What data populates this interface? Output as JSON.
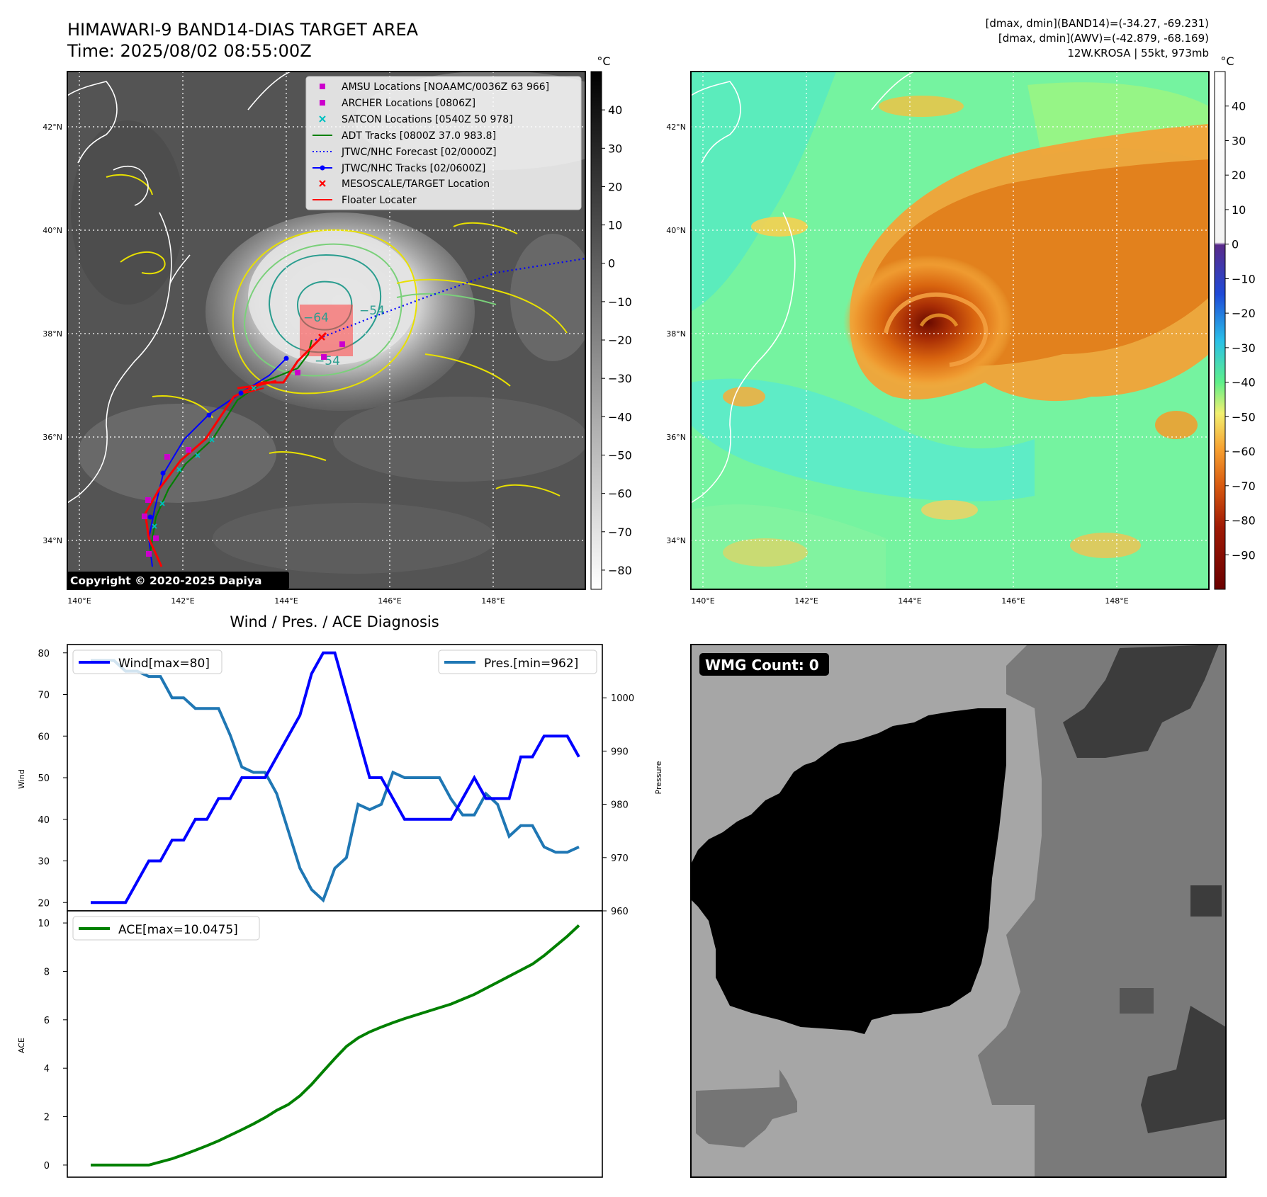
{
  "header": {
    "title_line1": "HIMAWARI-9 BAND14-DIAS TARGET AREA",
    "title_line2": "Time: 2025/08/02 08:55:00Z",
    "info_line1": "[dmax, dmin](BAND14)=(-34.27, -69.231)",
    "info_line2": "[dmax, dmin](AWV)=(-42.879, -68.169)",
    "info_line3": "12W.KROSA | 55kt, 973mb"
  },
  "map_panel_left": {
    "lon_ticks": [
      "140°E",
      "142°E",
      "144°E",
      "146°E",
      "148°E"
    ],
    "lat_ticks": [
      "42°N",
      "40°N",
      "38°N",
      "36°N",
      "34°N"
    ],
    "copyright": "Copyright © 2020-2025 Dapiya",
    "contour_labels": [
      "−64",
      "−54",
      "−54"
    ],
    "legend": [
      {
        "label": "AMSU Locations [NOAAMC/0036Z 63 966]",
        "color": "#cc00cc",
        "marker": "square"
      },
      {
        "label": "ARCHER Locations [0806Z]",
        "color": "#cc00cc",
        "marker": "square"
      },
      {
        "label": "SATCON Locations [0540Z 50 978]",
        "color": "#00c0c0",
        "marker": "x"
      },
      {
        "label": "ADT Tracks [0800Z 37.0 983.8]",
        "color": "#008000",
        "marker": "line"
      },
      {
        "label": "JTWC/NHC Forecast [02/0000Z]",
        "color": "#0000ff",
        "marker": "dotted"
      },
      {
        "label": "JTWC/NHC Tracks [02/0600Z]",
        "color": "#0000ff",
        "marker": "line-dot"
      },
      {
        "label": "MESOSCALE/TARGET Location",
        "color": "#ff0000",
        "marker": "x"
      },
      {
        "label": "Floater Locater",
        "color": "#ff0000",
        "marker": "line"
      }
    ],
    "colorbar": {
      "unit": "°C",
      "ticks": [
        "40",
        "30",
        "20",
        "10",
        "0",
        "−10",
        "−20",
        "−30",
        "−40",
        "−50",
        "−60",
        "−70",
        "−80"
      ],
      "range": [
        -85,
        50
      ]
    }
  },
  "map_panel_right": {
    "lon_ticks": [
      "140°E",
      "142°E",
      "144°E",
      "146°E",
      "148°E"
    ],
    "lat_ticks": [
      "42°N",
      "40°N",
      "38°N",
      "36°N",
      "34°N"
    ],
    "colorbar": {
      "unit": "°C",
      "ticks": [
        "40",
        "30",
        "20",
        "10",
        "0",
        "−10",
        "−20",
        "−30",
        "−40",
        "−50",
        "−60",
        "−70",
        "−80",
        "−90"
      ],
      "range": [
        -100,
        50
      ]
    }
  },
  "wmg_panel": {
    "label": "WMG Count: 0"
  },
  "chart_data": [
    {
      "type": "line",
      "title": "Wind / Pres. / ACE Diagnosis",
      "ylabel": "Wind",
      "y2label": "Pressure",
      "ylim": [
        18,
        82
      ],
      "y2lim": [
        960,
        1010
      ],
      "yticks": [
        20,
        30,
        40,
        50,
        60,
        70,
        80
      ],
      "y2ticks": [
        960,
        970,
        980,
        990,
        1000
      ],
      "series": [
        {
          "name": "Wind[max=80]",
          "axis": "left",
          "color": "#0000ff",
          "x": [
            0,
            1,
            2,
            3,
            4,
            5,
            6,
            7,
            8,
            9,
            10,
            11,
            12,
            13,
            14,
            15,
            16,
            17,
            18,
            19,
            20,
            21,
            22,
            23,
            24,
            25,
            26,
            27,
            28,
            29,
            30,
            31,
            32,
            33,
            34,
            35,
            36,
            37,
            38,
            39,
            40,
            41,
            42
          ],
          "values": [
            20,
            20,
            20,
            20,
            25,
            30,
            30,
            35,
            35,
            40,
            40,
            45,
            45,
            50,
            50,
            50,
            55,
            60,
            65,
            75,
            80,
            80,
            70,
            60,
            50,
            50,
            45,
            40,
            40,
            40,
            40,
            40,
            45,
            50,
            45,
            45,
            45,
            55,
            55,
            60,
            60,
            60,
            55
          ]
        },
        {
          "name": "Pres.[min=962]",
          "axis": "right",
          "color": "#1f77b4",
          "x": [
            0,
            1,
            2,
            3,
            4,
            5,
            6,
            7,
            8,
            9,
            10,
            11,
            12,
            13,
            14,
            15,
            16,
            17,
            18,
            19,
            20,
            21,
            22,
            23,
            24,
            25,
            26,
            27,
            28,
            29,
            30,
            31,
            32,
            33,
            34,
            35,
            36,
            37,
            38,
            39,
            40,
            41,
            42
          ],
          "values": [
            1007,
            1007,
            1007,
            1005,
            1005,
            1004,
            1004,
            1000,
            1000,
            998,
            998,
            998,
            993,
            987,
            986,
            986,
            982,
            975,
            968,
            964,
            962,
            968,
            970,
            980,
            979,
            980,
            986,
            985,
            985,
            985,
            985,
            981,
            978,
            978,
            982,
            980,
            974,
            976,
            976,
            972,
            971,
            971,
            972
          ]
        }
      ]
    },
    {
      "type": "line",
      "ylabel": "ACE",
      "ylim": [
        -0.5,
        10.5
      ],
      "yticks": [
        0,
        2,
        4,
        6,
        8,
        10
      ],
      "series": [
        {
          "name": "ACE[max=10.0475]",
          "color": "#008000",
          "x": [
            0,
            1,
            2,
            3,
            4,
            5,
            6,
            7,
            8,
            9,
            10,
            11,
            12,
            13,
            14,
            15,
            16,
            17,
            18,
            19,
            20,
            21,
            22,
            23,
            24,
            25,
            26,
            27,
            28,
            29,
            30,
            31,
            32,
            33,
            34,
            35,
            36,
            37,
            38,
            39,
            40,
            41,
            42
          ],
          "values": [
            0,
            0,
            0,
            0,
            0,
            0,
            0.13,
            0.26,
            0.43,
            0.61,
            0.8,
            1.0,
            1.23,
            1.46,
            1.7,
            1.96,
            2.26,
            2.5,
            2.86,
            3.33,
            3.87,
            4.4,
            4.9,
            5.25,
            5.5,
            5.7,
            5.88,
            6.05,
            6.2,
            6.35,
            6.5,
            6.65,
            6.85,
            7.05,
            7.3,
            7.55,
            7.8,
            8.05,
            8.3,
            8.65,
            9.05,
            9.45,
            9.9
          ]
        }
      ]
    }
  ]
}
